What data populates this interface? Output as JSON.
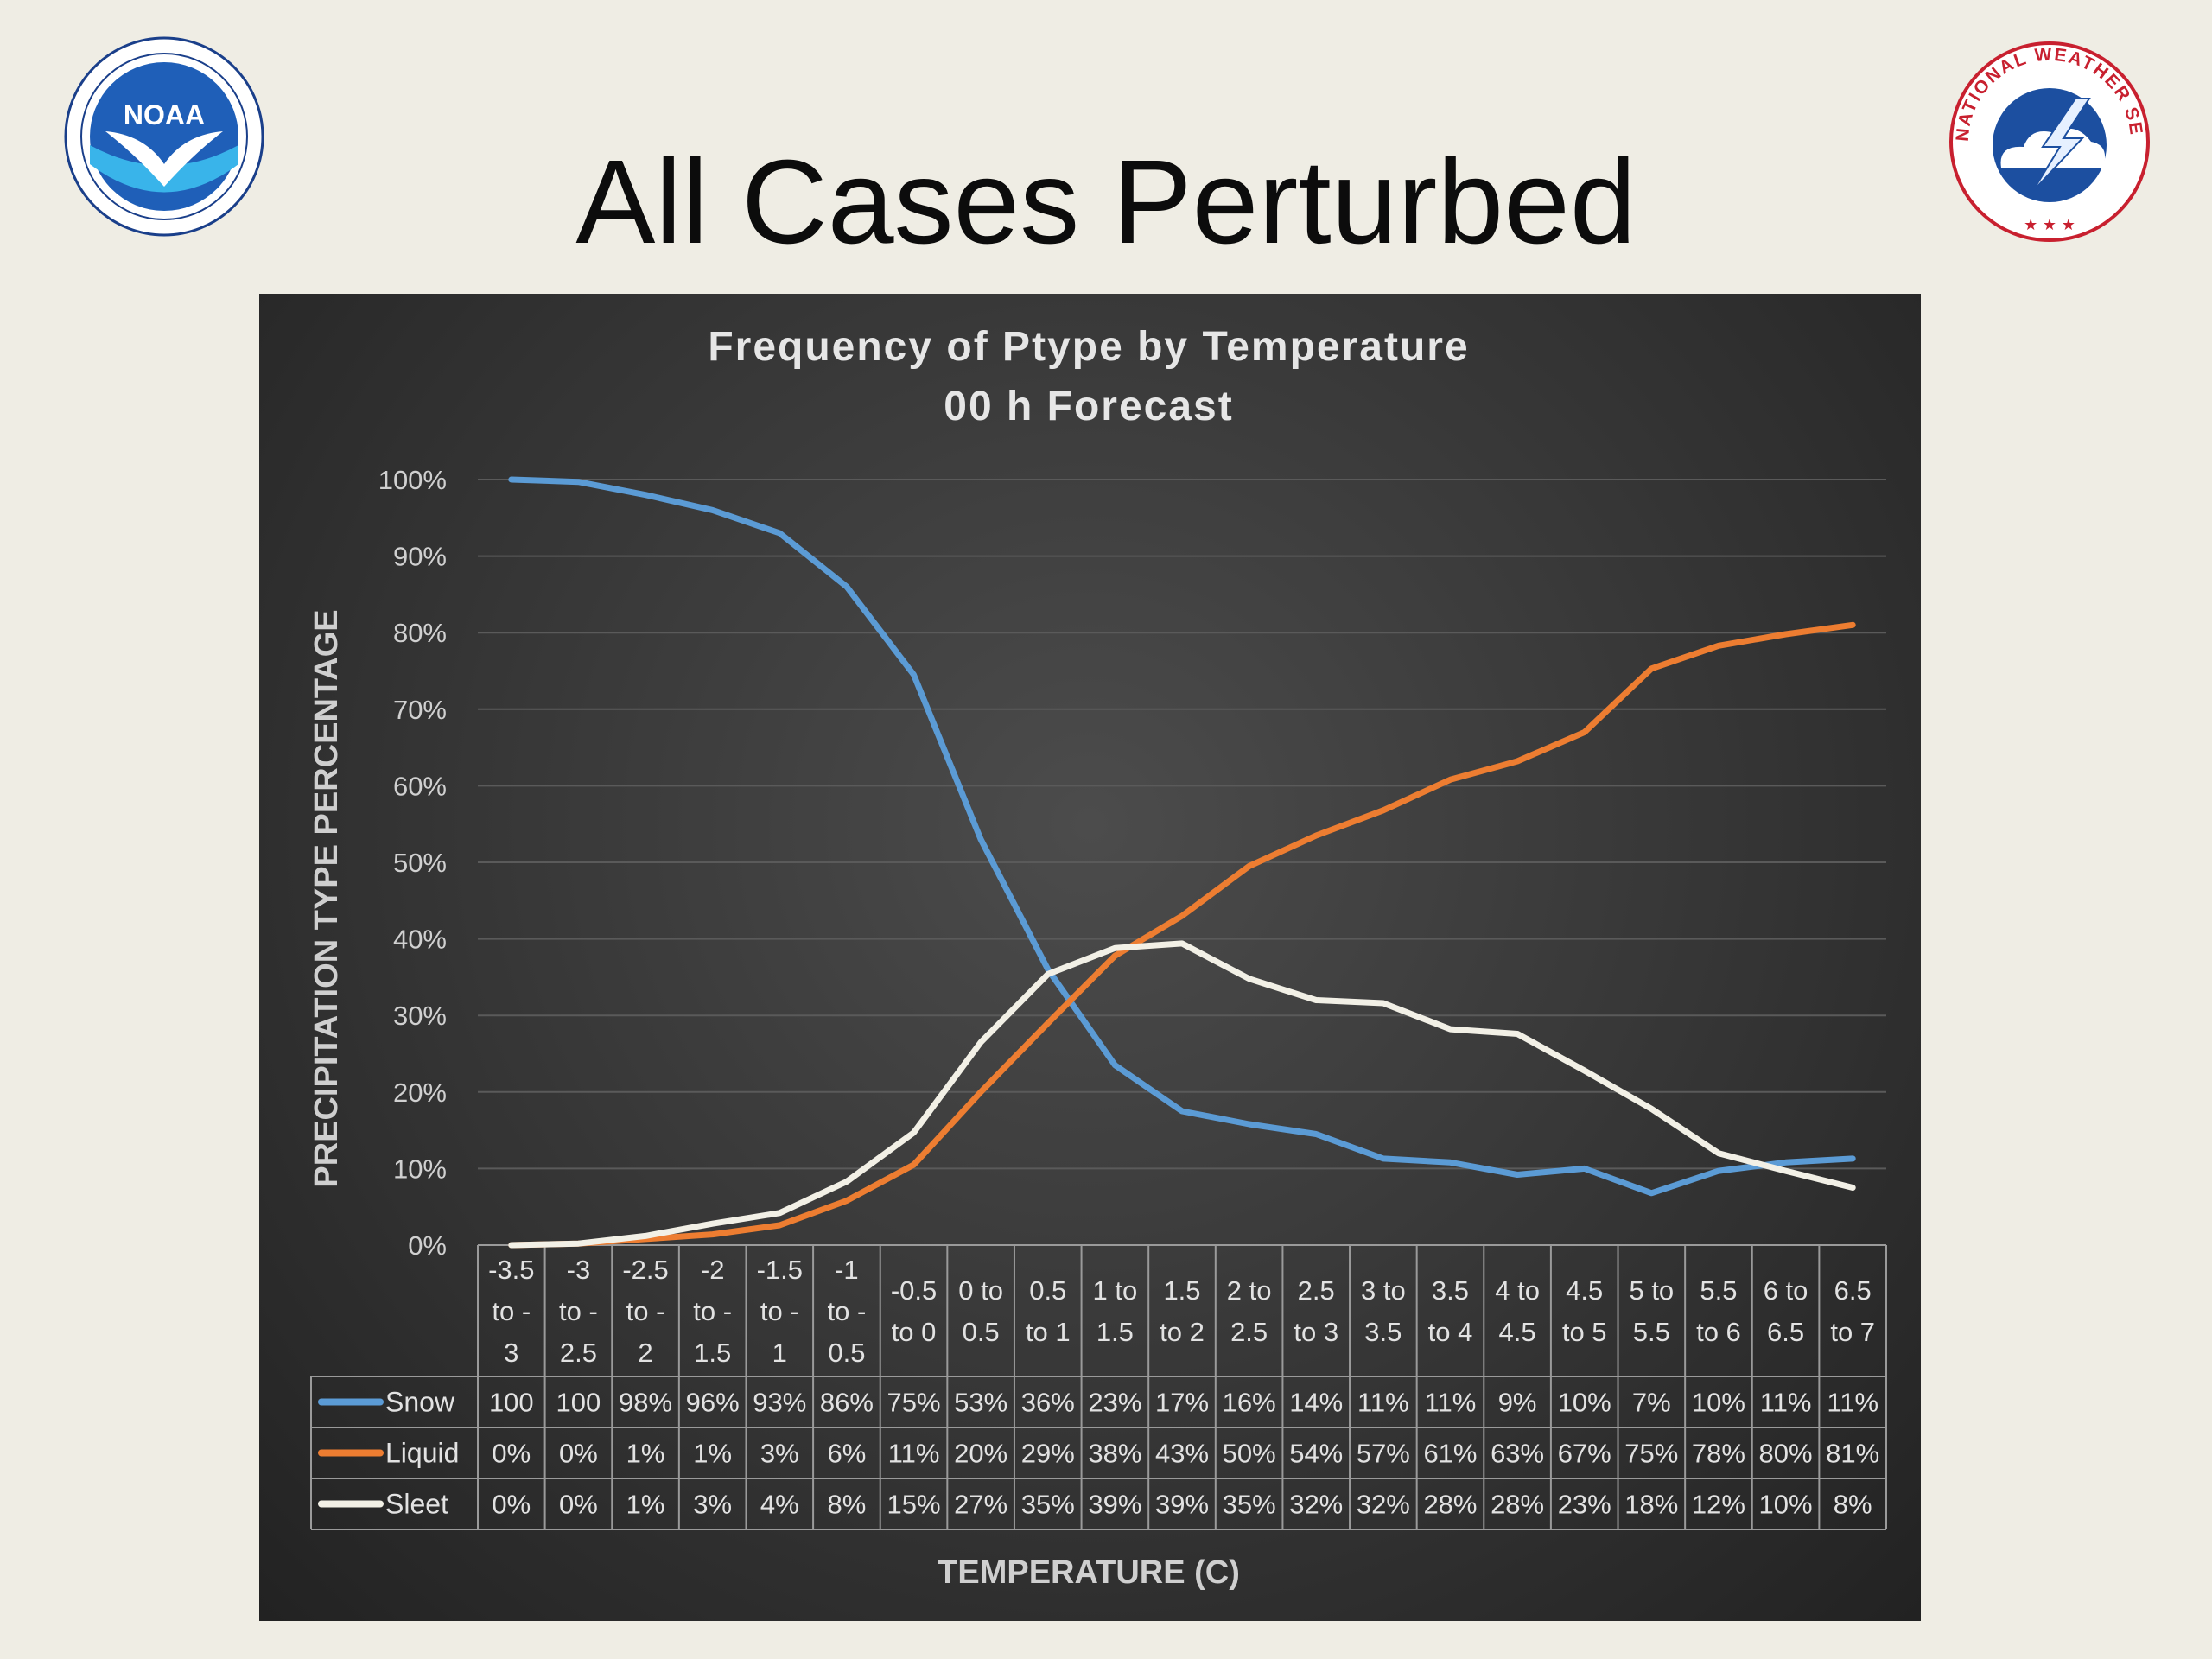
{
  "slide": {
    "title": "All Cases Perturbed"
  },
  "logos": {
    "noaa_mark": "NOAA",
    "nws_text": "NATIONAL WEATHER SERVICE"
  },
  "colors": {
    "background": "#efede4",
    "panel": "#3a3a3a",
    "snow": "#5b9bd5",
    "liquid": "#ed7d31",
    "sleet": "#f2f0e6",
    "grid": "#5a5a5a"
  },
  "chart_data": {
    "type": "line",
    "title": "Frequency of Ptype by Temperature",
    "subtitle": "00 h Forecast",
    "xlabel": "TEMPERATURE (C)",
    "ylabel": "PRECIPITATION TYPE PERCENTAGE",
    "ylim": [
      0,
      100
    ],
    "yticks": [
      "0%",
      "10%",
      "20%",
      "30%",
      "40%",
      "50%",
      "60%",
      "70%",
      "80%",
      "90%",
      "100%"
    ],
    "grid": true,
    "legend": "data-table",
    "categories": [
      [
        "-3.5",
        "to -",
        "3"
      ],
      [
        "-3",
        "to -",
        "2.5"
      ],
      [
        "-2.5",
        "to -",
        "2"
      ],
      [
        "-2",
        "to -",
        "1.5"
      ],
      [
        "-1.5",
        "to -",
        "1"
      ],
      [
        "-1",
        "to -",
        "0.5"
      ],
      [
        "-0.5",
        "to 0"
      ],
      [
        "0 to",
        "0.5"
      ],
      [
        "0.5",
        "to 1"
      ],
      [
        "1 to",
        "1.5"
      ],
      [
        "1.5",
        "to 2"
      ],
      [
        "2 to",
        "2.5"
      ],
      [
        "2.5",
        "to 3"
      ],
      [
        "3 to",
        "3.5"
      ],
      [
        "3.5",
        "to 4"
      ],
      [
        "4 to",
        "4.5"
      ],
      [
        "4.5",
        "to 5"
      ],
      [
        "5 to",
        "5.5"
      ],
      [
        "5.5",
        "to 6"
      ],
      [
        "6 to",
        "6.5"
      ],
      [
        "6.5",
        "to 7"
      ]
    ],
    "series": [
      {
        "name": "Snow",
        "color": "#5b9bd5",
        "values": [
          100,
          99.7,
          98,
          96,
          93,
          86,
          74.5,
          53,
          36,
          23.5,
          17.5,
          15.8,
          14.5,
          11.3,
          10.8,
          9.2,
          10,
          6.8,
          9.7,
          10.8,
          11.3
        ],
        "labels": [
          "100",
          "100",
          "98%",
          "96%",
          "93%",
          "86%",
          "75%",
          "53%",
          "36%",
          "23%",
          "17%",
          "16%",
          "14%",
          "11%",
          "11%",
          "9%",
          "10%",
          "7%",
          "10%",
          "11%",
          "11%"
        ]
      },
      {
        "name": "Liquid",
        "color": "#ed7d31",
        "values": [
          0,
          0.2,
          0.8,
          1.4,
          2.6,
          5.8,
          10.5,
          20,
          29,
          37.8,
          43,
          49.5,
          53.5,
          56.8,
          60.8,
          63.2,
          67,
          75.3,
          78.3,
          79.8,
          81
        ],
        "labels": [
          "0%",
          "0%",
          "1%",
          "1%",
          "3%",
          "6%",
          "11%",
          "20%",
          "29%",
          "38%",
          "43%",
          "50%",
          "54%",
          "57%",
          "61%",
          "63%",
          "67%",
          "75%",
          "78%",
          "80%",
          "81%"
        ]
      },
      {
        "name": "Sleet",
        "color": "#f2f0e6",
        "values": [
          0,
          0.2,
          1.2,
          2.8,
          4.2,
          8.3,
          14.7,
          26.5,
          35.4,
          38.8,
          39.4,
          34.8,
          32,
          31.6,
          28.2,
          27.6,
          22.8,
          17.8,
          12,
          9.7,
          7.5
        ],
        "labels": [
          "0%",
          "0%",
          "1%",
          "3%",
          "4%",
          "8%",
          "15%",
          "27%",
          "35%",
          "39%",
          "39%",
          "35%",
          "32%",
          "32%",
          "28%",
          "28%",
          "23%",
          "18%",
          "12%",
          "10%",
          "8%"
        ]
      }
    ]
  }
}
